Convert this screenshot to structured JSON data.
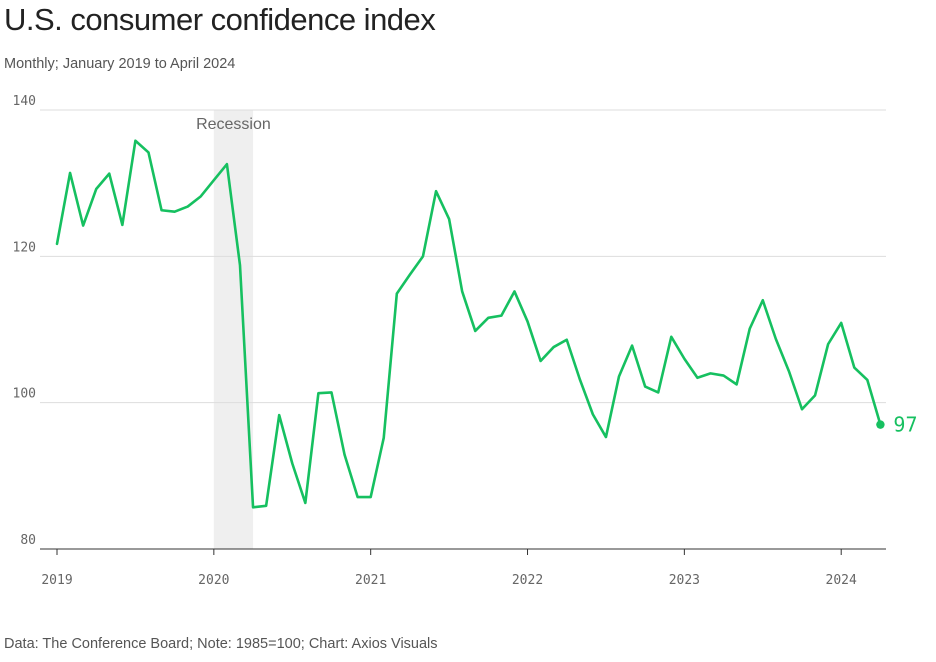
{
  "title": "U.S. consumer confidence index",
  "subtitle": "Monthly; January 2019 to April 2024",
  "source": "Data: The Conference Board; Note: 1985=100; Chart: Axios Visuals",
  "colors": {
    "line": "#16c060",
    "recession_band": "#efefef",
    "grid": "#dddddd"
  },
  "chart_data": {
    "type": "line",
    "title": "U.S. consumer confidence index",
    "xlabel": "",
    "ylabel": "",
    "ylim": [
      80,
      140
    ],
    "xlim": [
      "2019-01",
      "2024-04"
    ],
    "grid": true,
    "y_ticks": [
      {
        "value": 80,
        "label": "80"
      },
      {
        "value": 100,
        "label": "100"
      },
      {
        "value": 120,
        "label": "120"
      },
      {
        "value": 140,
        "label": "140"
      }
    ],
    "x_ticks": [
      {
        "month_index": 0,
        "label": "2019"
      },
      {
        "month_index": 12,
        "label": "2020"
      },
      {
        "month_index": 24,
        "label": "2021"
      },
      {
        "month_index": 36,
        "label": "2022"
      },
      {
        "month_index": 48,
        "label": "2023"
      },
      {
        "month_index": 60,
        "label": "2024"
      }
    ],
    "annotations": [
      {
        "type": "shaded_band",
        "label": "Recession",
        "start_month_index": 12,
        "end_month_index": 15
      }
    ],
    "end_label": "97",
    "series": [
      {
        "name": "Consumer confidence index",
        "start": "2019-01",
        "frequency": "monthly",
        "values": [
          121.7,
          131.4,
          124.2,
          129.2,
          131.3,
          124.3,
          135.8,
          134.2,
          126.3,
          126.1,
          126.8,
          128.2,
          130.4,
          132.6,
          118.8,
          85.7,
          85.9,
          98.3,
          91.7,
          86.3,
          101.3,
          101.4,
          92.9,
          87.1,
          87.1,
          95.2,
          114.9,
          117.5,
          120.0,
          128.9,
          125.1,
          115.2,
          109.8,
          111.6,
          111.9,
          115.2,
          111.1,
          105.7,
          107.6,
          108.6,
          103.2,
          98.4,
          95.3,
          103.6,
          107.8,
          102.2,
          101.4,
          109.0,
          106.0,
          103.4,
          104.0,
          103.7,
          102.5,
          110.1,
          114.0,
          108.7,
          104.3,
          99.1,
          101.0,
          108.0,
          110.9,
          104.8,
          103.1,
          97.0
        ]
      }
    ]
  }
}
